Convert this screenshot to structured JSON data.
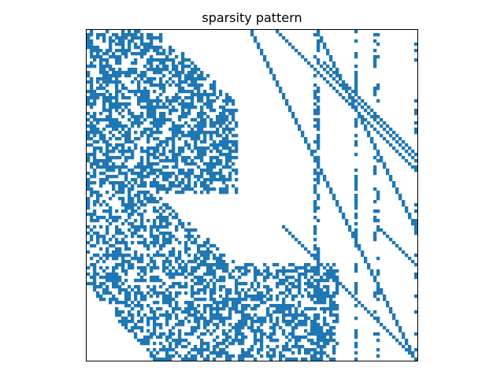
{
  "chart_data": {
    "type": "heatmap",
    "title": "sparsity pattern",
    "xlabel": "",
    "ylabel": "",
    "grid": false,
    "axis_ticks": "none",
    "n_rows": 105,
    "n_cols": 105,
    "marker_color": "#1f77b4",
    "nonzero_regions": [
      {
        "rows": [
          0,
          52
        ],
        "cols": [
          0,
          52
        ],
        "pattern": "dense-random",
        "density": 0.55
      },
      {
        "rows": [
          52,
          105
        ],
        "cols": [
          0,
          80
        ],
        "pattern": "dense-random",
        "density": 0.5
      },
      {
        "rows": [
          0,
          105
        ],
        "cols": [
          52,
          105
        ],
        "pattern": "diagonals"
      },
      {
        "rows": [
          0,
          105
        ],
        "cols": [
          85,
          86
        ],
        "pattern": "sparse-column"
      },
      {
        "rows": [
          0,
          105
        ],
        "cols": [
          90,
          93
        ],
        "pattern": "sparse-column"
      },
      {
        "rows": [
          0,
          105
        ],
        "cols": [
          104,
          105
        ],
        "pattern": "sparse-column"
      }
    ]
  }
}
